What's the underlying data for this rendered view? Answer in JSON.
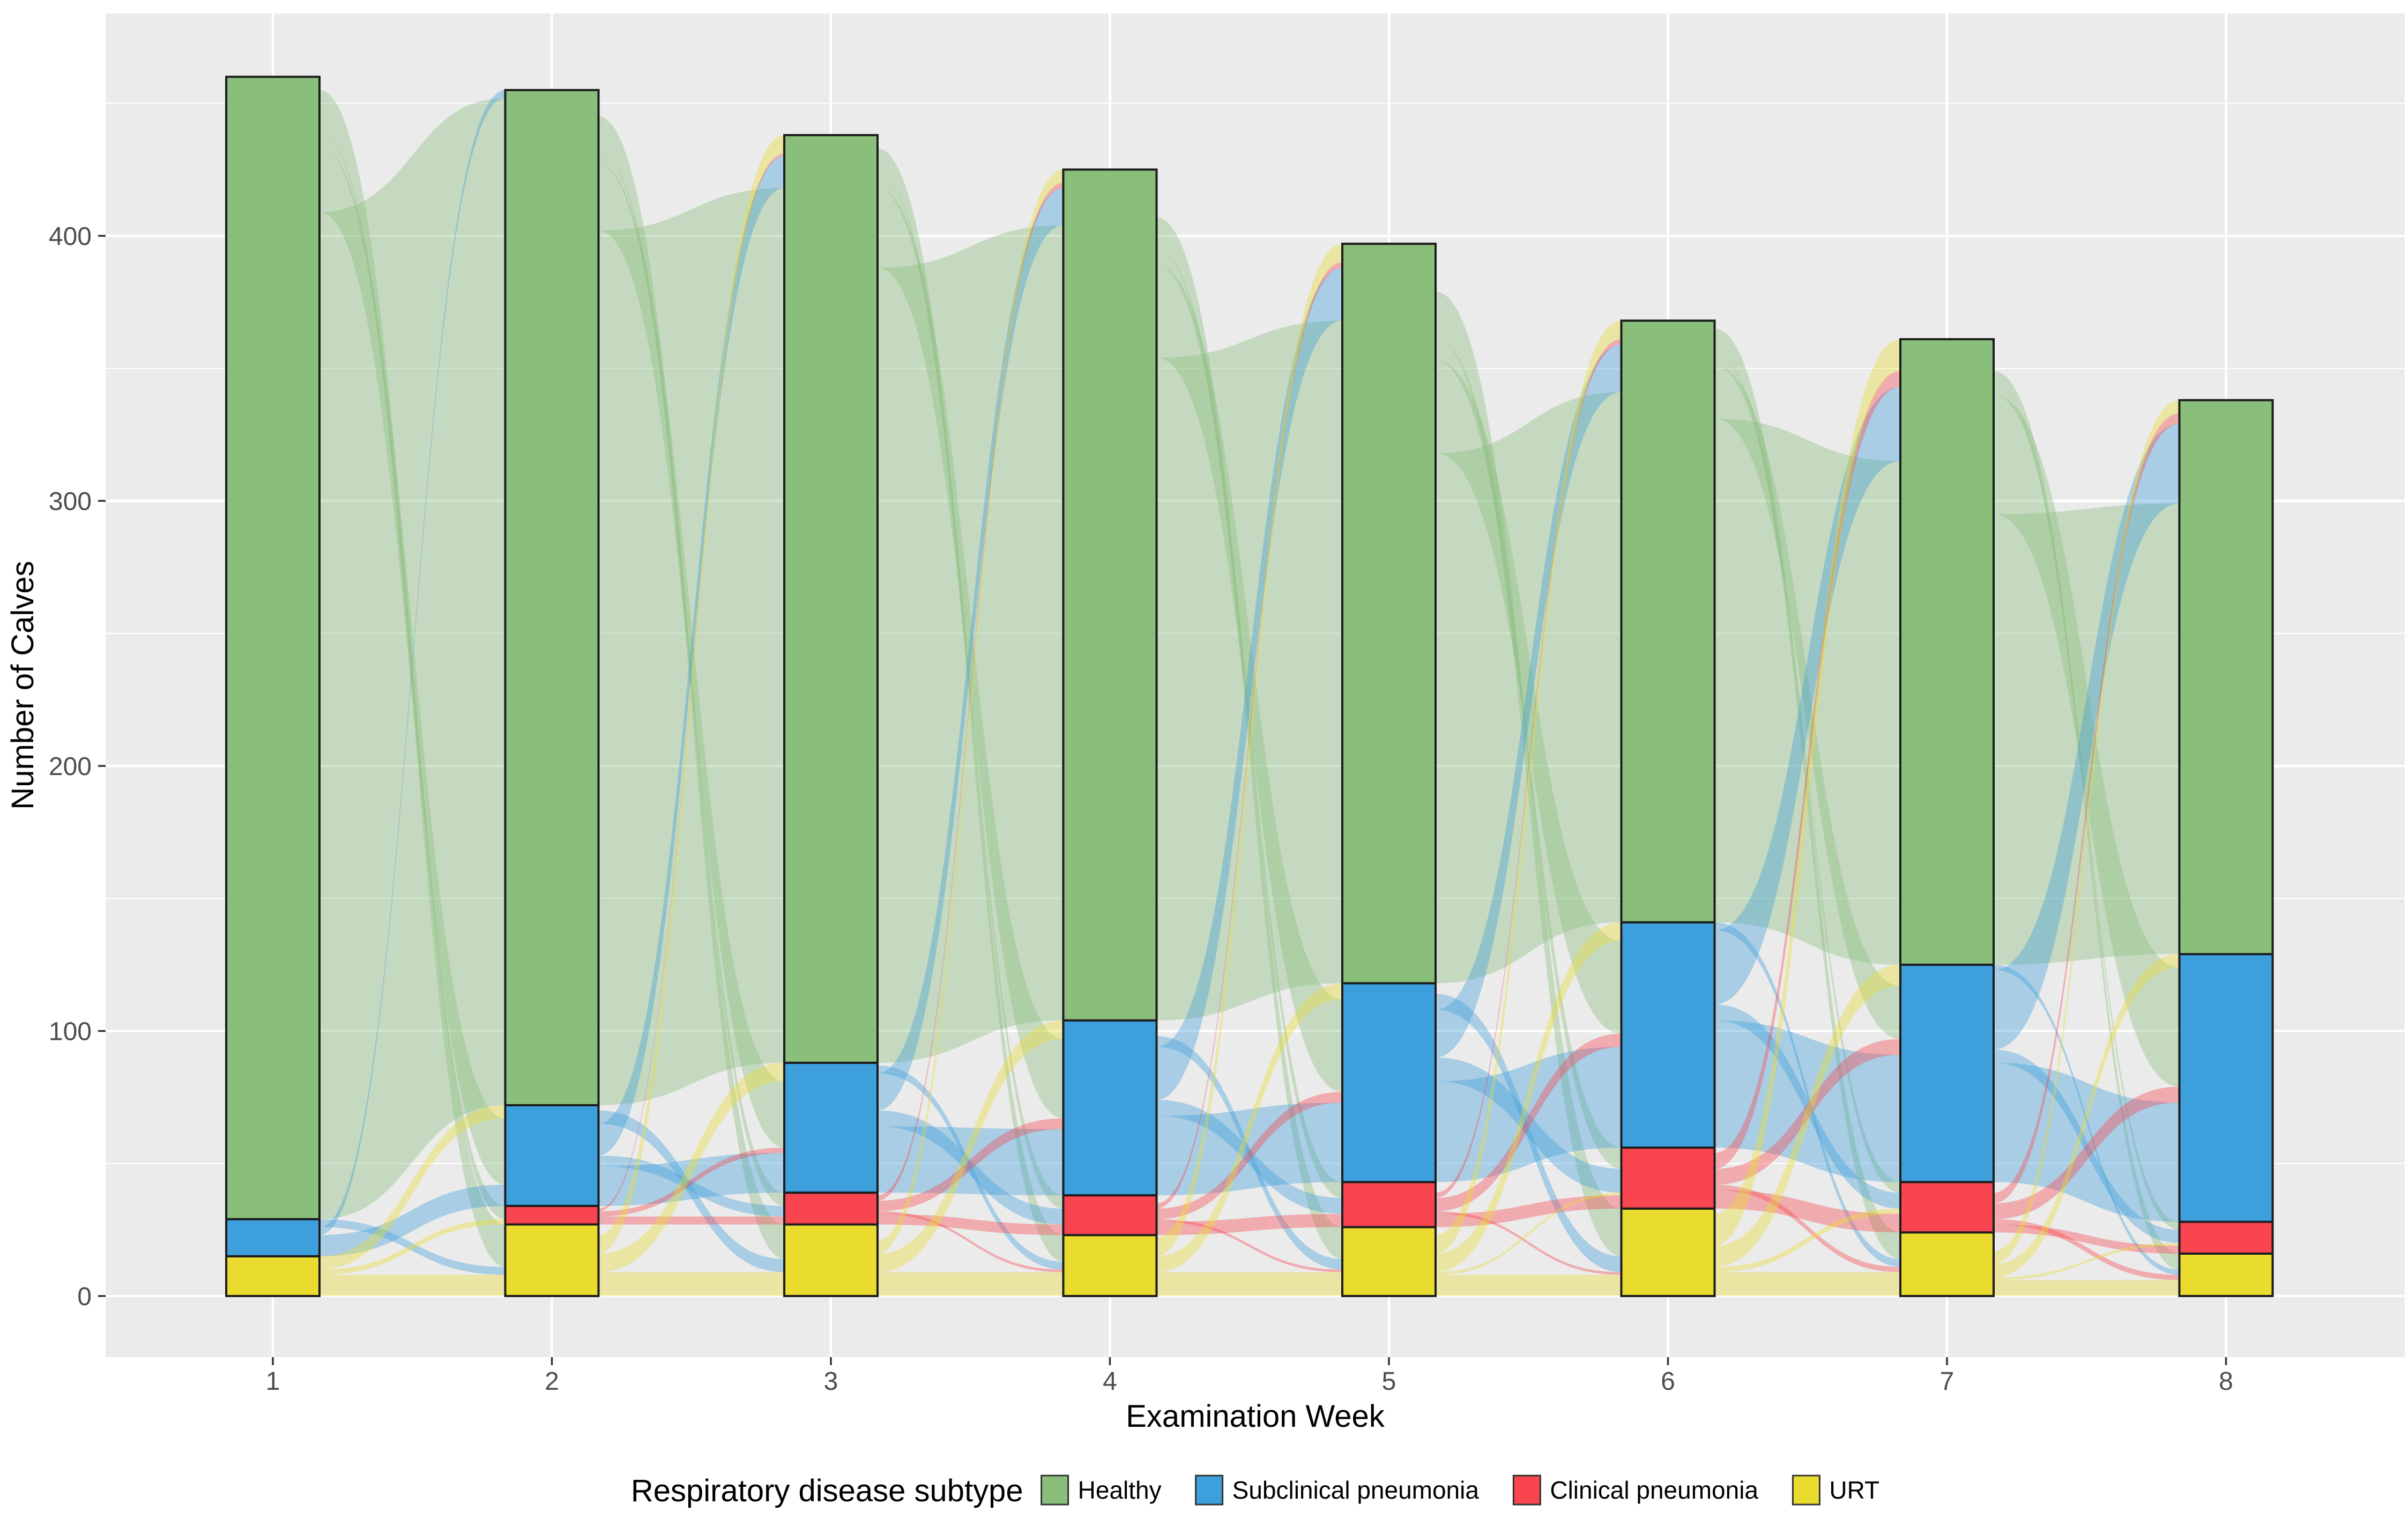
{
  "chart_data": {
    "type": "area",
    "subtype": "alluvial-stacked-bars",
    "title": "",
    "xlabel": "Examination Week",
    "ylabel": "Number of Calves",
    "x_ticks": [
      "1",
      "2",
      "3",
      "4",
      "5",
      "6",
      "7",
      "8"
    ],
    "y_ticks": [
      "0",
      "100",
      "200",
      "300",
      "400"
    ],
    "y_tick_values": [
      0,
      100,
      200,
      300,
      400
    ],
    "y_minor_values": [
      50,
      150,
      250,
      350,
      450
    ],
    "ylim": [
      0,
      483
    ],
    "grid": true,
    "legend_position": "bottom",
    "panel_background": "#EBEBEB",
    "gridline_color": "#FFFFFF",
    "tick_text_color": "#4D4D4D",
    "axis_title_color": "#000000",
    "stratum_border_color": "#1C1C1C",
    "flow_opacity": 0.38,
    "categories": [
      {
        "key": "U",
        "label": "URT",
        "color": "#E9DC2F"
      },
      {
        "key": "C",
        "label": "Clinical pneumonia",
        "color": "#F9454F"
      },
      {
        "key": "S",
        "label": "Subclinical pneumonia",
        "color": "#3D9FDB"
      },
      {
        "key": "H",
        "label": "Healthy",
        "color": "#8ABE7B"
      }
    ],
    "weeks": [
      1,
      2,
      3,
      4,
      5,
      6,
      7,
      8
    ],
    "series": [
      {
        "name": "URT",
        "key": "U",
        "values": [
          15,
          27,
          27,
          23,
          26,
          33,
          24,
          16
        ]
      },
      {
        "name": "Clinical pneumonia",
        "key": "C",
        "values": [
          0,
          7,
          12,
          15,
          17,
          23,
          19,
          12
        ]
      },
      {
        "name": "Subclinical pneumonia",
        "key": "S",
        "values": [
          14,
          38,
          49,
          66,
          75,
          85,
          82,
          101
        ]
      },
      {
        "name": "Healthy",
        "key": "H",
        "values": [
          431,
          383,
          350,
          321,
          279,
          227,
          236,
          209
        ]
      }
    ],
    "totals": [
      460,
      455,
      438,
      425,
      397,
      368,
      361,
      338
    ],
    "flows": [
      {
        "from_week": 1,
        "transitions": [
          [
            "H",
            "H",
            380
          ],
          [
            "H",
            "S",
            25
          ],
          [
            "H",
            "C",
            5
          ],
          [
            "H",
            "U",
            16
          ],
          [
            "S",
            "S",
            8
          ],
          [
            "S",
            "H",
            3
          ],
          [
            "S",
            "U",
            3
          ],
          [
            "U",
            "U",
            8
          ],
          [
            "U",
            "S",
            5
          ],
          [
            "U",
            "C",
            2
          ]
        ]
      },
      {
        "from_week": 2,
        "transitions": [
          [
            "H",
            "H",
            330
          ],
          [
            "H",
            "S",
            25
          ],
          [
            "H",
            "C",
            5
          ],
          [
            "H",
            "U",
            13
          ],
          [
            "S",
            "S",
            15
          ],
          [
            "S",
            "H",
            12
          ],
          [
            "S",
            "C",
            4
          ],
          [
            "S",
            "U",
            5
          ],
          [
            "C",
            "C",
            3
          ],
          [
            "C",
            "S",
            2
          ],
          [
            "C",
            "H",
            1
          ],
          [
            "U",
            "U",
            9
          ],
          [
            "U",
            "S",
            7
          ],
          [
            "U",
            "H",
            7
          ]
        ]
      },
      {
        "from_week": 3,
        "transitions": [
          [
            "H",
            "H",
            300
          ],
          [
            "H",
            "S",
            30
          ],
          [
            "H",
            "C",
            5
          ],
          [
            "H",
            "U",
            10
          ],
          [
            "S",
            "S",
            25
          ],
          [
            "S",
            "H",
            14
          ],
          [
            "S",
            "C",
            6
          ],
          [
            "S",
            "U",
            3
          ],
          [
            "C",
            "C",
            4
          ],
          [
            "C",
            "S",
            4
          ],
          [
            "C",
            "H",
            2
          ],
          [
            "C",
            "U",
            1
          ],
          [
            "U",
            "U",
            9
          ],
          [
            "U",
            "S",
            7
          ],
          [
            "U",
            "H",
            5
          ]
        ]
      },
      {
        "from_week": 4,
        "transitions": [
          [
            "H",
            "H",
            250
          ],
          [
            "H",
            "S",
            35
          ],
          [
            "H",
            "C",
            6
          ],
          [
            "H",
            "U",
            12
          ],
          [
            "S",
            "S",
            30
          ],
          [
            "S",
            "H",
            20
          ],
          [
            "S",
            "C",
            6
          ],
          [
            "S",
            "U",
            4
          ],
          [
            "C",
            "C",
            5
          ],
          [
            "C",
            "S",
            4
          ],
          [
            "C",
            "H",
            2
          ],
          [
            "C",
            "U",
            1
          ],
          [
            "U",
            "U",
            9
          ],
          [
            "U",
            "S",
            6
          ],
          [
            "U",
            "H",
            7
          ]
        ]
      },
      {
        "from_week": 5,
        "transitions": [
          [
            "H",
            "H",
            200
          ],
          [
            "H",
            "S",
            35
          ],
          [
            "H",
            "C",
            8
          ],
          [
            "H",
            "U",
            18
          ],
          [
            "S",
            "S",
            38
          ],
          [
            "S",
            "H",
            18
          ],
          [
            "S",
            "C",
            9
          ],
          [
            "S",
            "U",
            6
          ],
          [
            "C",
            "C",
            5
          ],
          [
            "C",
            "S",
            5
          ],
          [
            "C",
            "H",
            2
          ],
          [
            "C",
            "U",
            1
          ],
          [
            "U",
            "U",
            8
          ],
          [
            "U",
            "S",
            7
          ],
          [
            "U",
            "H",
            7
          ],
          [
            "U",
            "C",
            1
          ]
        ]
      },
      {
        "from_week": 6,
        "transitions": [
          [
            "H",
            "H",
            190
          ],
          [
            "H",
            "S",
            20
          ],
          [
            "H",
            "C",
            4
          ],
          [
            "H",
            "U",
            10
          ],
          [
            "S",
            "S",
            48
          ],
          [
            "S",
            "H",
            28
          ],
          [
            "S",
            "C",
            6
          ],
          [
            "S",
            "U",
            3
          ],
          [
            "C",
            "C",
            7
          ],
          [
            "C",
            "S",
            6
          ],
          [
            "C",
            "H",
            6
          ],
          [
            "C",
            "U",
            2
          ],
          [
            "U",
            "U",
            9
          ],
          [
            "U",
            "S",
            8
          ],
          [
            "U",
            "H",
            12
          ],
          [
            "U",
            "C",
            2
          ]
        ]
      },
      {
        "from_week": 7,
        "transitions": [
          [
            "H",
            "H",
            170
          ],
          [
            "H",
            "S",
            45
          ],
          [
            "H",
            "C",
            3
          ],
          [
            "H",
            "U",
            6
          ],
          [
            "S",
            "S",
            45
          ],
          [
            "S",
            "H",
            30
          ],
          [
            "S",
            "C",
            5
          ],
          [
            "S",
            "U",
            2
          ],
          [
            "C",
            "C",
            3
          ],
          [
            "C",
            "S",
            6
          ],
          [
            "C",
            "H",
            4
          ],
          [
            "C",
            "U",
            2
          ],
          [
            "U",
            "U",
            6
          ],
          [
            "U",
            "S",
            5
          ],
          [
            "U",
            "H",
            5
          ],
          [
            "U",
            "C",
            1
          ]
        ]
      }
    ]
  },
  "legend": {
    "title": "Respiratory disease subtype",
    "items": [
      {
        "label": "Healthy",
        "color": "#8ABE7B"
      },
      {
        "label": "Subclinical pneumonia",
        "color": "#3D9FDB"
      },
      {
        "label": "Clinical pneumonia",
        "color": "#F9454F"
      },
      {
        "label": "URT",
        "color": "#E9DC2F"
      }
    ]
  },
  "axes": {
    "x_title": "Examination Week",
    "y_title": "Number of Calves"
  }
}
